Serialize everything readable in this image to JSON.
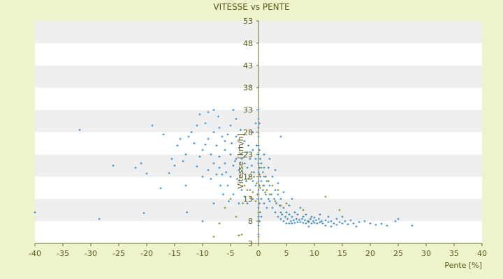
{
  "chart_data": {
    "type": "scatter",
    "title": "VITESSE vs PENTE",
    "xlabel": "Pente [%]",
    "ylabel": "Vitesse [km/h]",
    "xlim": [
      -40,
      40
    ],
    "ylim": [
      3,
      53
    ],
    "xticks": [
      "-40",
      "-35",
      "-30",
      "-25",
      "-20",
      "-15",
      "-10",
      "-5",
      "0",
      "5",
      "10",
      "15",
      "20",
      "25",
      "30",
      "35",
      "40"
    ],
    "yticks": [
      "3",
      "8",
      "13",
      "18",
      "23",
      "28",
      "33",
      "38",
      "43",
      "48",
      "53"
    ],
    "grid": "horizontal alternating bands",
    "legend": "none",
    "colors": {
      "background": "#EEF3CC",
      "band_light": "#FFFFFF",
      "band_dark": "#EFEFEF",
      "axis": "#6B6B2A",
      "series_blue": "#2E86C8",
      "series_olive": "#8A8A1A"
    },
    "series": [
      {
        "color": "#2E86C8",
        "points": [
          [
            -40,
            10
          ],
          [
            -32,
            28.5
          ],
          [
            -28.5,
            8.5
          ],
          [
            -26,
            20.5
          ],
          [
            -22,
            20
          ],
          [
            -21,
            21
          ],
          [
            -20.5,
            9.8
          ],
          [
            -20,
            18.7
          ],
          [
            -19,
            29.5
          ],
          [
            -17.5,
            15.4
          ],
          [
            -17,
            27.5
          ],
          [
            -16,
            18.8
          ],
          [
            -15.5,
            22
          ],
          [
            -15,
            20.5
          ],
          [
            -14.5,
            25
          ],
          [
            -14,
            26.5
          ],
          [
            -13.5,
            21.5
          ],
          [
            -13,
            16
          ],
          [
            -13,
            23
          ],
          [
            -12.8,
            10
          ],
          [
            -12.5,
            27
          ],
          [
            -12,
            28
          ],
          [
            -11.5,
            25.5
          ],
          [
            -11,
            29.5
          ],
          [
            -11,
            20.3
          ],
          [
            -10.5,
            32
          ],
          [
            -10.5,
            22.5
          ],
          [
            -10,
            24
          ],
          [
            -10,
            18
          ],
          [
            -10,
            8
          ],
          [
            -9.5,
            30
          ],
          [
            -9.5,
            25.2
          ],
          [
            -9,
            19.5
          ],
          [
            -9,
            32.5
          ],
          [
            -9,
            26.5
          ],
          [
            -8.5,
            17.5
          ],
          [
            -8.5,
            23
          ],
          [
            -8,
            28
          ],
          [
            -8,
            21
          ],
          [
            -8,
            12
          ],
          [
            -8,
            33
          ],
          [
            -7.5,
            25
          ],
          [
            -7.5,
            18.5
          ],
          [
            -7.2,
            31.5
          ],
          [
            -7,
            29
          ],
          [
            -7,
            20
          ],
          [
            -7,
            22.5
          ],
          [
            -6.8,
            16
          ],
          [
            -6.5,
            27
          ],
          [
            -6.5,
            18.5
          ],
          [
            -6.3,
            14
          ],
          [
            -6,
            26
          ],
          [
            -6,
            21
          ],
          [
            -6,
            24
          ],
          [
            -5.8,
            19
          ],
          [
            -5.5,
            27.5
          ],
          [
            -5.5,
            16
          ],
          [
            -5.3,
            12.5
          ],
          [
            -5,
            29.5
          ],
          [
            -5,
            23
          ],
          [
            -5,
            18
          ],
          [
            -4.8,
            25.5
          ],
          [
            -4.5,
            33
          ],
          [
            -4.5,
            20.5
          ],
          [
            -4.5,
            14
          ],
          [
            -4.2,
            21.5
          ],
          [
            -4,
            22
          ],
          [
            -4,
            31
          ],
          [
            -4,
            27
          ],
          [
            -3.8,
            17.5
          ],
          [
            -3.5,
            24.5
          ],
          [
            -3.5,
            19.5
          ],
          [
            -3.5,
            12
          ],
          [
            -3.2,
            28.5
          ],
          [
            -3,
            22
          ],
          [
            -3,
            15
          ],
          [
            -2.8,
            18.8
          ],
          [
            -2.5,
            26
          ],
          [
            -2.5,
            21
          ],
          [
            -2.5,
            13.5
          ],
          [
            -2.2,
            17
          ],
          [
            -2,
            23.5
          ],
          [
            -2,
            20
          ],
          [
            -2,
            12
          ],
          [
            -1.8,
            25
          ],
          [
            -1.5,
            22
          ],
          [
            -1.5,
            18
          ],
          [
            -1.5,
            15
          ],
          [
            -1.2,
            20.5
          ],
          [
            -1,
            24
          ],
          [
            -1,
            17
          ],
          [
            -1,
            13
          ],
          [
            -1,
            28
          ],
          [
            -0.8,
            19
          ],
          [
            -0.5,
            22
          ],
          [
            -0.5,
            16
          ],
          [
            -0.5,
            30
          ],
          [
            -0.3,
            25
          ],
          [
            -0.2,
            14
          ],
          [
            0,
            5
          ],
          [
            0,
            7
          ],
          [
            0,
            9
          ],
          [
            0,
            11
          ],
          [
            0,
            13
          ],
          [
            0,
            15
          ],
          [
            0,
            17
          ],
          [
            0,
            19
          ],
          [
            0,
            21
          ],
          [
            0,
            23
          ],
          [
            0,
            25
          ],
          [
            0,
            27
          ],
          [
            0,
            29
          ],
          [
            0,
            31
          ],
          [
            0,
            33
          ],
          [
            0.2,
            8
          ],
          [
            0.2,
            12
          ],
          [
            0.2,
            16
          ],
          [
            0.2,
            20
          ],
          [
            0.2,
            24
          ],
          [
            0.2,
            30
          ],
          [
            0.3,
            10
          ],
          [
            0.3,
            18
          ],
          [
            0.3,
            22
          ],
          [
            0.5,
            9
          ],
          [
            0.5,
            13
          ],
          [
            0.5,
            17
          ],
          [
            0.5,
            21
          ],
          [
            0.8,
            15
          ],
          [
            0.8,
            19
          ],
          [
            1,
            12
          ],
          [
            1,
            16
          ],
          [
            1,
            20
          ],
          [
            1,
            23
          ],
          [
            1.3,
            14
          ],
          [
            1.3,
            18
          ],
          [
            1.5,
            11
          ],
          [
            1.5,
            17
          ],
          [
            1.8,
            13
          ],
          [
            1.8,
            20
          ],
          [
            2,
            12.5
          ],
          [
            2,
            16
          ],
          [
            2,
            22
          ],
          [
            2.3,
            14
          ],
          [
            2.5,
            11
          ],
          [
            2.5,
            18
          ],
          [
            2.8,
            13
          ],
          [
            3,
            10
          ],
          [
            3,
            15
          ],
          [
            3,
            19.5
          ],
          [
            3.2,
            12
          ],
          [
            3.5,
            9
          ],
          [
            3.5,
            14
          ],
          [
            3.5,
            16.5
          ],
          [
            3.8,
            11.5
          ],
          [
            4,
            8.5
          ],
          [
            4,
            10
          ],
          [
            4,
            13
          ],
          [
            4,
            27
          ],
          [
            4.2,
            9.5
          ],
          [
            4.5,
            8
          ],
          [
            4.5,
            11
          ],
          [
            4.5,
            14.5
          ],
          [
            4.8,
            9
          ],
          [
            5,
            7.5
          ],
          [
            5,
            10
          ],
          [
            5,
            12
          ],
          [
            5.2,
            8.5
          ],
          [
            5.5,
            7.5
          ],
          [
            5.5,
            9.5
          ],
          [
            5.5,
            11.5
          ],
          [
            5.8,
            8
          ],
          [
            6,
            7.5
          ],
          [
            6,
            9
          ],
          [
            6,
            13
          ],
          [
            6.3,
            8.2
          ],
          [
            6.5,
            7.6
          ],
          [
            6.5,
            10
          ],
          [
            6.8,
            8.5
          ],
          [
            7,
            7.8
          ],
          [
            7,
            9.5
          ],
          [
            7.3,
            8.3
          ],
          [
            7.5,
            7.8
          ],
          [
            7.5,
            11
          ],
          [
            7.8,
            8.5
          ],
          [
            8,
            7.6
          ],
          [
            8,
            9
          ],
          [
            8.3,
            8.2
          ],
          [
            8.5,
            7.5
          ],
          [
            8.5,
            9.5
          ],
          [
            8.8,
            8
          ],
          [
            9,
            7.8
          ],
          [
            9,
            6.8
          ],
          [
            9.3,
            8.5
          ],
          [
            9.5,
            7.5
          ],
          [
            9.5,
            9
          ],
          [
            9.8,
            8
          ],
          [
            10,
            7.6
          ],
          [
            10,
            8.8
          ],
          [
            10.3,
            8.2
          ],
          [
            10.5,
            7.5
          ],
          [
            10.8,
            8.5
          ],
          [
            11,
            7.8
          ],
          [
            11,
            9.5
          ],
          [
            11.3,
            8
          ],
          [
            11.5,
            7.5
          ],
          [
            12,
            8.2
          ],
          [
            12,
            7
          ],
          [
            12.5,
            7.8
          ],
          [
            12.5,
            9
          ],
          [
            13,
            8
          ],
          [
            13,
            6.8
          ],
          [
            13.5,
            7.5
          ],
          [
            14,
            8.5
          ],
          [
            14,
            7.2
          ],
          [
            14.5,
            7.8
          ],
          [
            15,
            7.5
          ],
          [
            15,
            9
          ],
          [
            15.5,
            8
          ],
          [
            16,
            7.3
          ],
          [
            16.5,
            8.2
          ],
          [
            17,
            7.5
          ],
          [
            17.5,
            6.8
          ],
          [
            18,
            7.8
          ],
          [
            19,
            8
          ],
          [
            20,
            7.5
          ],
          [
            21,
            7.2
          ],
          [
            22,
            7.4
          ],
          [
            23,
            7
          ],
          [
            24.5,
            8
          ],
          [
            25,
            8.5
          ],
          [
            27.5,
            7
          ]
        ]
      },
      {
        "color": "#8A8A1A",
        "points": [
          [
            -8,
            4.5
          ],
          [
            -7,
            7.5
          ],
          [
            -6,
            11
          ],
          [
            -5,
            13
          ],
          [
            -4,
            9
          ],
          [
            -3.5,
            4.8
          ],
          [
            -3,
            5
          ],
          [
            -2.8,
            12
          ],
          [
            -2.5,
            16
          ],
          [
            -2,
            15
          ],
          [
            -1.8,
            17.5
          ],
          [
            -1.5,
            13.5
          ],
          [
            -1.2,
            19
          ],
          [
            -1,
            14.5
          ],
          [
            -0.8,
            18
          ],
          [
            -0.5,
            12.5
          ],
          [
            -0.3,
            16.5
          ],
          [
            0,
            4.5
          ],
          [
            0,
            10
          ],
          [
            0,
            14
          ],
          [
            0.2,
            18.5
          ],
          [
            0.3,
            15.5
          ],
          [
            0.5,
            20
          ],
          [
            0.8,
            16
          ],
          [
            1,
            18
          ],
          [
            1.2,
            14.5
          ],
          [
            1.5,
            15
          ],
          [
            1.8,
            17
          ],
          [
            2,
            14
          ],
          [
            2.5,
            16
          ],
          [
            3,
            12.5
          ],
          [
            3.5,
            15
          ],
          [
            4,
            11.5
          ],
          [
            5,
            12
          ],
          [
            8,
            10.5
          ],
          [
            9,
            8
          ],
          [
            12,
            13.5
          ],
          [
            14.5,
            10.5
          ]
        ]
      }
    ]
  }
}
